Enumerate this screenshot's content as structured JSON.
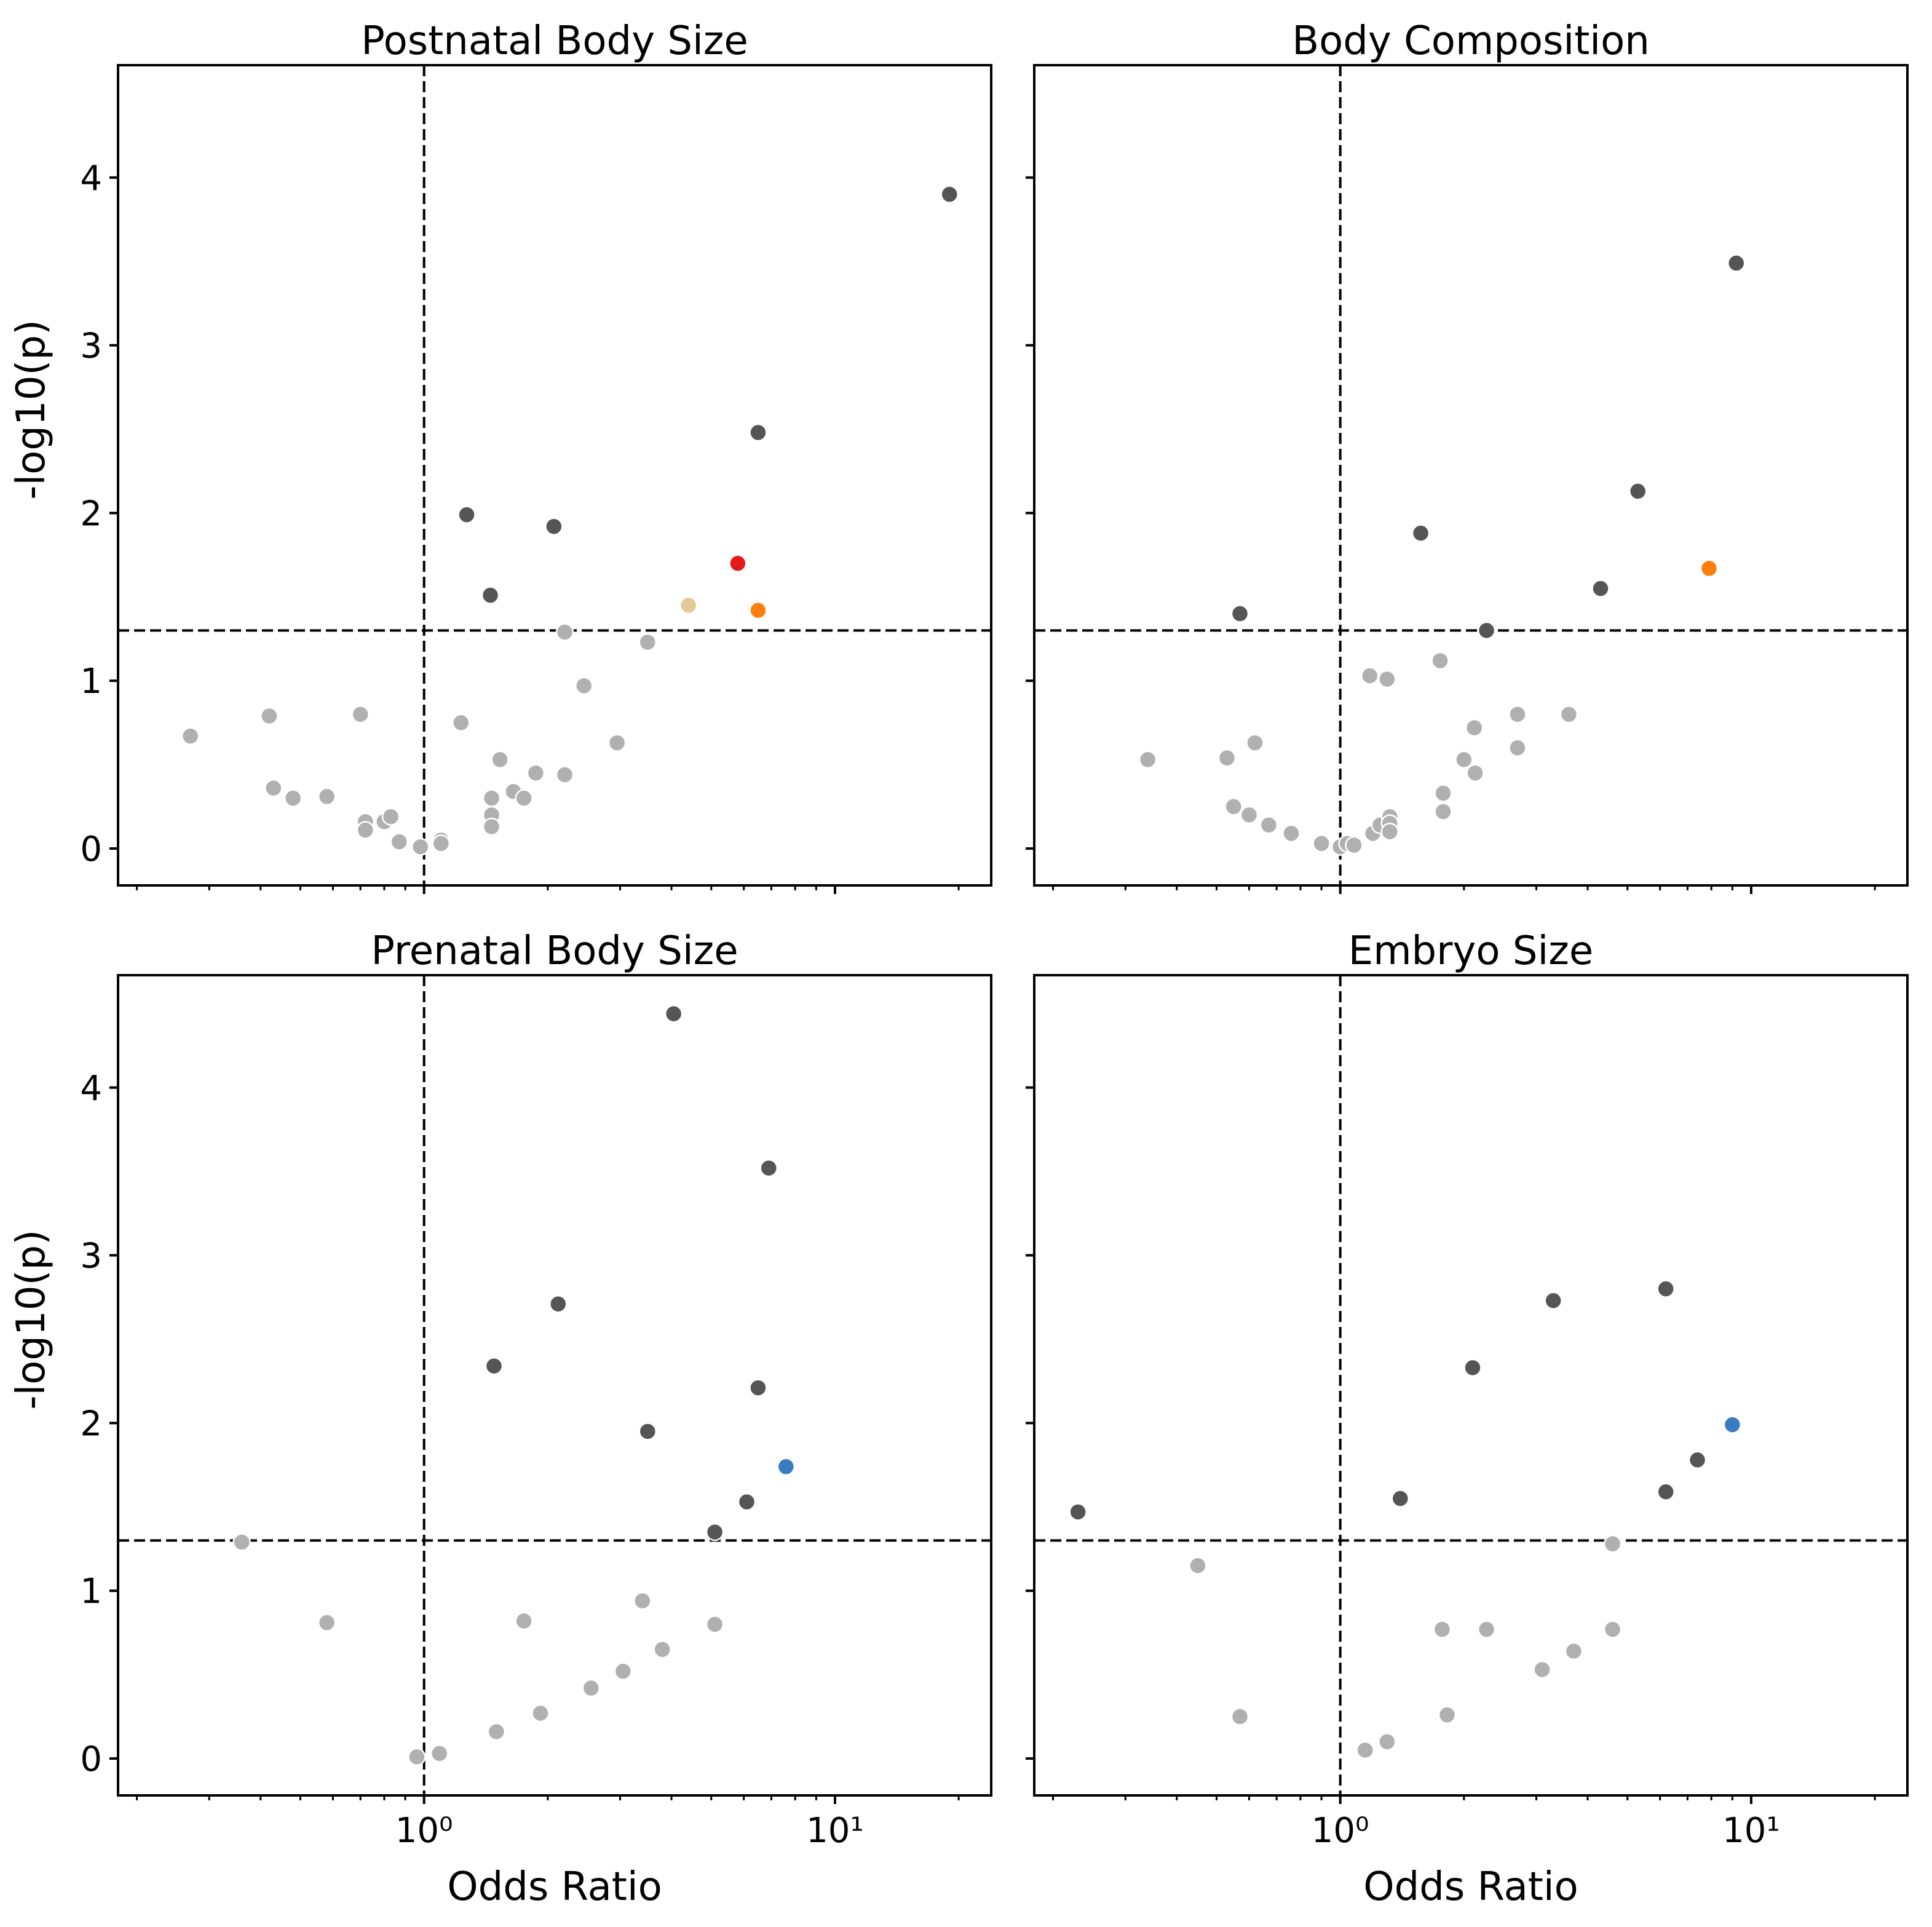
{
  "chart_data": [
    {
      "type": "scatter",
      "title": "Postnatal Body Size",
      "xscale": "log",
      "xlim": [
        0.18,
        24
      ],
      "ylim": [
        -0.22,
        4.67
      ],
      "ylabel": "-log10(p)",
      "xlabel": "",
      "threshold_y": 1.3,
      "reference_x": 1.0,
      "xticks": [],
      "yticks": [
        "0",
        "1",
        "2",
        "3",
        "4"
      ],
      "points": [
        {
          "x": 0.27,
          "y": 0.67,
          "color": "#b0b0b0"
        },
        {
          "x": 0.42,
          "y": 0.79,
          "color": "#b0b0b0"
        },
        {
          "x": 0.43,
          "y": 0.36,
          "color": "#b0b0b0"
        },
        {
          "x": 0.48,
          "y": 0.3,
          "color": "#b0b0b0"
        },
        {
          "x": 0.58,
          "y": 0.31,
          "color": "#b0b0b0"
        },
        {
          "x": 0.7,
          "y": 0.8,
          "color": "#b0b0b0"
        },
        {
          "x": 0.72,
          "y": 0.16,
          "color": "#b0b0b0"
        },
        {
          "x": 0.72,
          "y": 0.11,
          "color": "#b0b0b0"
        },
        {
          "x": 0.8,
          "y": 0.16,
          "color": "#b0b0b0"
        },
        {
          "x": 0.83,
          "y": 0.19,
          "color": "#b0b0b0"
        },
        {
          "x": 0.87,
          "y": 0.04,
          "color": "#b0b0b0"
        },
        {
          "x": 0.98,
          "y": 0.01,
          "color": "#b0b0b0"
        },
        {
          "x": 1.1,
          "y": 0.05,
          "color": "#b0b0b0"
        },
        {
          "x": 1.1,
          "y": 0.03,
          "color": "#b0b0b0"
        },
        {
          "x": 1.23,
          "y": 0.75,
          "color": "#b0b0b0"
        },
        {
          "x": 1.46,
          "y": 0.3,
          "color": "#b0b0b0"
        },
        {
          "x": 1.46,
          "y": 0.2,
          "color": "#b0b0b0"
        },
        {
          "x": 1.46,
          "y": 0.13,
          "color": "#b0b0b0"
        },
        {
          "x": 1.53,
          "y": 0.53,
          "color": "#b0b0b0"
        },
        {
          "x": 1.65,
          "y": 0.34,
          "color": "#b0b0b0"
        },
        {
          "x": 1.75,
          "y": 0.3,
          "color": "#b0b0b0"
        },
        {
          "x": 1.87,
          "y": 0.45,
          "color": "#b0b0b0"
        },
        {
          "x": 2.2,
          "y": 0.44,
          "color": "#b0b0b0"
        },
        {
          "x": 2.2,
          "y": 1.29,
          "color": "#b0b0b0"
        },
        {
          "x": 2.45,
          "y": 0.97,
          "color": "#b0b0b0"
        },
        {
          "x": 2.95,
          "y": 0.63,
          "color": "#b0b0b0"
        },
        {
          "x": 3.5,
          "y": 1.23,
          "color": "#b0b0b0"
        },
        {
          "x": 1.27,
          "y": 1.99,
          "color": "#555555"
        },
        {
          "x": 1.45,
          "y": 1.51,
          "color": "#555555"
        },
        {
          "x": 2.07,
          "y": 1.92,
          "color": "#555555"
        },
        {
          "x": 6.5,
          "y": 2.48,
          "color": "#555555"
        },
        {
          "x": 19.0,
          "y": 3.9,
          "color": "#555555"
        },
        {
          "x": 4.4,
          "y": 1.45,
          "color": "#e6c99a"
        },
        {
          "x": 5.8,
          "y": 1.7,
          "color": "#e31a1c"
        },
        {
          "x": 6.5,
          "y": 1.42,
          "color": "#ff7f0e"
        }
      ]
    },
    {
      "type": "scatter",
      "title": "Body Composition",
      "xscale": "log",
      "xlim": [
        0.18,
        24
      ],
      "ylim": [
        -0.22,
        4.67
      ],
      "ylabel": "",
      "xlabel": "",
      "threshold_y": 1.3,
      "reference_x": 1.0,
      "xticks": [],
      "yticks": [],
      "points": [
        {
          "x": 0.34,
          "y": 0.53,
          "color": "#b0b0b0"
        },
        {
          "x": 0.53,
          "y": 0.54,
          "color": "#b0b0b0"
        },
        {
          "x": 0.55,
          "y": 0.25,
          "color": "#b0b0b0"
        },
        {
          "x": 0.6,
          "y": 0.2,
          "color": "#b0b0b0"
        },
        {
          "x": 0.62,
          "y": 0.63,
          "color": "#b0b0b0"
        },
        {
          "x": 0.67,
          "y": 0.14,
          "color": "#b0b0b0"
        },
        {
          "x": 0.76,
          "y": 0.09,
          "color": "#b0b0b0"
        },
        {
          "x": 0.9,
          "y": 0.04,
          "color": "#b0b0b0"
        },
        {
          "x": 0.9,
          "y": 0.03,
          "color": "#b0b0b0"
        },
        {
          "x": 1.0,
          "y": 0.01,
          "color": "#b0b0b0"
        },
        {
          "x": 1.04,
          "y": 0.03,
          "color": "#b0b0b0"
        },
        {
          "x": 1.08,
          "y": 0.02,
          "color": "#b0b0b0"
        },
        {
          "x": 1.18,
          "y": 1.03,
          "color": "#b0b0b0"
        },
        {
          "x": 1.2,
          "y": 0.09,
          "color": "#b0b0b0"
        },
        {
          "x": 1.25,
          "y": 0.14,
          "color": "#b0b0b0"
        },
        {
          "x": 1.3,
          "y": 1.01,
          "color": "#b0b0b0"
        },
        {
          "x": 1.32,
          "y": 0.19,
          "color": "#b0b0b0"
        },
        {
          "x": 1.32,
          "y": 0.15,
          "color": "#b0b0b0"
        },
        {
          "x": 1.32,
          "y": 0.1,
          "color": "#b0b0b0"
        },
        {
          "x": 1.75,
          "y": 1.12,
          "color": "#b0b0b0"
        },
        {
          "x": 1.78,
          "y": 0.33,
          "color": "#b0b0b0"
        },
        {
          "x": 1.78,
          "y": 0.22,
          "color": "#b0b0b0"
        },
        {
          "x": 2.0,
          "y": 0.53,
          "color": "#b0b0b0"
        },
        {
          "x": 2.12,
          "y": 0.72,
          "color": "#b0b0b0"
        },
        {
          "x": 2.13,
          "y": 0.45,
          "color": "#b0b0b0"
        },
        {
          "x": 2.7,
          "y": 0.8,
          "color": "#b0b0b0"
        },
        {
          "x": 2.7,
          "y": 0.6,
          "color": "#b0b0b0"
        },
        {
          "x": 3.6,
          "y": 0.8,
          "color": "#b0b0b0"
        },
        {
          "x": 0.57,
          "y": 1.4,
          "color": "#555555"
        },
        {
          "x": 1.57,
          "y": 1.88,
          "color": "#555555"
        },
        {
          "x": 2.27,
          "y": 1.3,
          "color": "#555555"
        },
        {
          "x": 4.3,
          "y": 1.55,
          "color": "#555555"
        },
        {
          "x": 5.3,
          "y": 2.13,
          "color": "#555555"
        },
        {
          "x": 9.2,
          "y": 3.49,
          "color": "#555555"
        },
        {
          "x": 7.9,
          "y": 1.67,
          "color": "#ff7f0e"
        }
      ]
    },
    {
      "type": "scatter",
      "title": "Prenatal Body Size",
      "xscale": "log",
      "xlim": [
        0.18,
        24
      ],
      "ylim": [
        -0.22,
        4.67
      ],
      "ylabel": "-log10(p)",
      "xlabel": "Odds Ratio",
      "threshold_y": 1.3,
      "reference_x": 1.0,
      "xticks": [
        "10⁰",
        "10¹"
      ],
      "yticks": [
        "0",
        "1",
        "2",
        "3",
        "4"
      ],
      "points": [
        {
          "x": 0.36,
          "y": 1.29,
          "color": "#b0b0b0"
        },
        {
          "x": 0.58,
          "y": 0.81,
          "color": "#b0b0b0"
        },
        {
          "x": 0.96,
          "y": 0.01,
          "color": "#b0b0b0"
        },
        {
          "x": 1.09,
          "y": 0.03,
          "color": "#b0b0b0"
        },
        {
          "x": 1.5,
          "y": 0.16,
          "color": "#b0b0b0"
        },
        {
          "x": 1.75,
          "y": 0.82,
          "color": "#b0b0b0"
        },
        {
          "x": 1.92,
          "y": 0.27,
          "color": "#b0b0b0"
        },
        {
          "x": 2.55,
          "y": 0.42,
          "color": "#b0b0b0"
        },
        {
          "x": 3.05,
          "y": 0.52,
          "color": "#b0b0b0"
        },
        {
          "x": 3.4,
          "y": 0.94,
          "color": "#b0b0b0"
        },
        {
          "x": 3.8,
          "y": 0.65,
          "color": "#b0b0b0"
        },
        {
          "x": 5.1,
          "y": 0.8,
          "color": "#b0b0b0"
        },
        {
          "x": 1.48,
          "y": 2.34,
          "color": "#555555"
        },
        {
          "x": 2.12,
          "y": 2.71,
          "color": "#555555"
        },
        {
          "x": 3.5,
          "y": 1.95,
          "color": "#555555"
        },
        {
          "x": 4.05,
          "y": 4.44,
          "color": "#555555"
        },
        {
          "x": 5.1,
          "y": 1.35,
          "color": "#555555"
        },
        {
          "x": 6.1,
          "y": 1.53,
          "color": "#555555"
        },
        {
          "x": 6.5,
          "y": 2.21,
          "color": "#555555"
        },
        {
          "x": 6.9,
          "y": 3.52,
          "color": "#555555"
        },
        {
          "x": 7.6,
          "y": 1.74,
          "color": "#3a7cc1"
        }
      ]
    },
    {
      "type": "scatter",
      "title": "Embryo Size",
      "xscale": "log",
      "xlim": [
        0.18,
        24
      ],
      "ylim": [
        -0.22,
        4.67
      ],
      "ylabel": "",
      "xlabel": "Odds Ratio",
      "threshold_y": 1.3,
      "reference_x": 1.0,
      "xticks": [
        "10⁰",
        "10¹"
      ],
      "yticks": [],
      "points": [
        {
          "x": 0.45,
          "y": 1.15,
          "color": "#b0b0b0"
        },
        {
          "x": 0.57,
          "y": 0.25,
          "color": "#b0b0b0"
        },
        {
          "x": 1.15,
          "y": 0.05,
          "color": "#b0b0b0"
        },
        {
          "x": 1.3,
          "y": 0.1,
          "color": "#b0b0b0"
        },
        {
          "x": 1.77,
          "y": 0.77,
          "color": "#b0b0b0"
        },
        {
          "x": 1.82,
          "y": 0.26,
          "color": "#b0b0b0"
        },
        {
          "x": 2.27,
          "y": 0.77,
          "color": "#b0b0b0"
        },
        {
          "x": 3.1,
          "y": 0.53,
          "color": "#b0b0b0"
        },
        {
          "x": 3.7,
          "y": 0.64,
          "color": "#b0b0b0"
        },
        {
          "x": 4.6,
          "y": 1.28,
          "color": "#b0b0b0"
        },
        {
          "x": 4.6,
          "y": 0.77,
          "color": "#b0b0b0"
        },
        {
          "x": 0.23,
          "y": 1.47,
          "color": "#555555"
        },
        {
          "x": 1.4,
          "y": 1.55,
          "color": "#555555"
        },
        {
          "x": 2.1,
          "y": 2.33,
          "color": "#555555"
        },
        {
          "x": 3.3,
          "y": 2.73,
          "color": "#555555"
        },
        {
          "x": 6.2,
          "y": 2.8,
          "color": "#555555"
        },
        {
          "x": 6.2,
          "y": 1.59,
          "color": "#555555"
        },
        {
          "x": 7.4,
          "y": 1.78,
          "color": "#555555"
        },
        {
          "x": 9.0,
          "y": 1.99,
          "color": "#3a7cc1"
        }
      ]
    }
  ]
}
